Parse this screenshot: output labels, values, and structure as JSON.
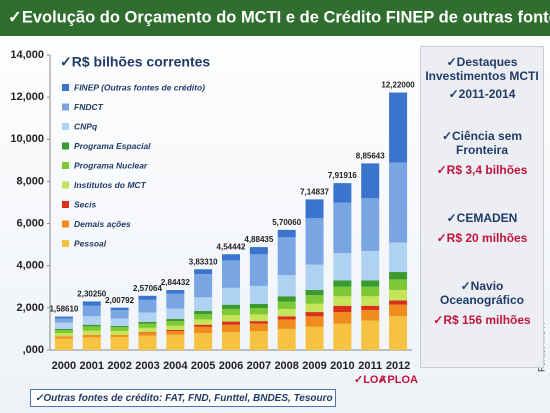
{
  "chart_data": {
    "type": "stacked_bar",
    "title": "✓Evolução do Orçamento do MCTI e de  Crédito FINEP de outras fontes",
    "subtitle": "✓R$ bilhões correntes",
    "categories": [
      "2000",
      "2001",
      "2002",
      "2003",
      "2004",
      "2005",
      "2006",
      "2007",
      "2008",
      "2009",
      "2010",
      "2011",
      "2012"
    ],
    "series": [
      {
        "name": "Pessoal",
        "color": "#f5c242",
        "values": [
          0.55,
          0.6,
          0.62,
          0.68,
          0.72,
          0.8,
          0.85,
          0.9,
          1.0,
          1.1,
          1.25,
          1.4,
          1.6
        ]
      },
      {
        "name": "Demais ações",
        "color": "#f08c1e",
        "values": [
          0.1,
          0.12,
          0.1,
          0.15,
          0.18,
          0.3,
          0.35,
          0.35,
          0.45,
          0.5,
          0.55,
          0.5,
          0.55
        ]
      },
      {
        "name": "Secis",
        "color": "#d9301c",
        "values": [
          0,
          0,
          0,
          0.02,
          0.05,
          0.1,
          0.15,
          0.12,
          0.15,
          0.2,
          0.3,
          0.2,
          0.2
        ]
      },
      {
        "name": "Institutos do MCT",
        "color": "#c4e45a",
        "values": [
          0.15,
          0.2,
          0.18,
          0.2,
          0.2,
          0.25,
          0.3,
          0.32,
          0.35,
          0.4,
          0.45,
          0.45,
          0.5
        ]
      },
      {
        "name": "Programa Nuclear",
        "color": "#7cc835",
        "values": [
          0.15,
          0.2,
          0.18,
          0.2,
          0.22,
          0.25,
          0.3,
          0.3,
          0.35,
          0.4,
          0.45,
          0.45,
          0.5
        ]
      },
      {
        "name": "Programa Espacial",
        "color": "#3a9a2e",
        "values": [
          0.05,
          0.08,
          0.06,
          0.08,
          0.1,
          0.15,
          0.2,
          0.2,
          0.25,
          0.25,
          0.3,
          0.3,
          0.35
        ]
      },
      {
        "name": "CNPq",
        "color": "#b0d2f2",
        "values": [
          0.3,
          0.4,
          0.35,
          0.45,
          0.5,
          0.65,
          0.8,
          0.85,
          1.0,
          1.2,
          1.3,
          1.4,
          1.4
        ]
      },
      {
        "name": "FNDCT",
        "color": "#79a6e3",
        "values": [
          0.2,
          0.5,
          0.4,
          0.6,
          0.7,
          1.1,
          1.3,
          1.5,
          1.8,
          2.2,
          2.4,
          2.5,
          3.8
        ]
      },
      {
        "name": "FINEP (Outras fontes de crédito)",
        "color": "#3b74cc",
        "values": [
          0.0861,
          0.2025,
          0.1179,
          0.1906,
          0.1743,
          0.2331,
          0.2944,
          0.3444,
          0.3506,
          0.8984,
          0.9192,
          1.6564,
          3.32
        ]
      }
    ],
    "totals": [
      1.5861,
      2.3025,
      2.00792,
      2.57064,
      2.84432,
      3.8331,
      4.54442,
      4.88435,
      5.7006,
      7.14837,
      7.91916,
      8.85643,
      12.22
    ],
    "value_labels": [
      "1,58610",
      "2,30250",
      "2,00792",
      "2,57064",
      "2,84432",
      "3,83310",
      "4,54442",
      "4,88435",
      "5,70060",
      "7,14837",
      "7,91916",
      "8,85643",
      "12,22000"
    ],
    "ylim": [
      0,
      14
    ],
    "yticks": [
      {
        "value": 0,
        "label": ",000"
      },
      {
        "value": 2,
        "label": "2,000"
      },
      {
        "value": 4,
        "label": "4,000"
      },
      {
        "value": 6,
        "label": "6,000"
      },
      {
        "value": 8,
        "label": "8,000"
      },
      {
        "value": 10,
        "label": "10,000"
      },
      {
        "value": 12,
        "label": "12,000"
      },
      {
        "value": 14,
        "label": "14,000"
      }
    ],
    "grid": false,
    "annotations": [
      {
        "text": "✓LOA",
        "category": "2011"
      },
      {
        "text": "✓PLOA",
        "category": "2012"
      }
    ],
    "note": "✓Outras fontes  de crédito: FAT, FND, Funttel, BNDES, Tesouro",
    "source": "Fonte: MCTI"
  },
  "side_panel": {
    "heading": "✓Destaques Investimentos MCTI",
    "period": "✓2011-2014",
    "items": [
      {
        "label": "✓Ciência sem Fronteira",
        "amount": "✓R$ 3,4 bilhões"
      },
      {
        "label": "✓CEMADEN",
        "amount": "✓R$ 20 milhões"
      },
      {
        "label": "✓Navio Oceanográfico",
        "amount": "✓R$ 156 milhões"
      }
    ]
  }
}
